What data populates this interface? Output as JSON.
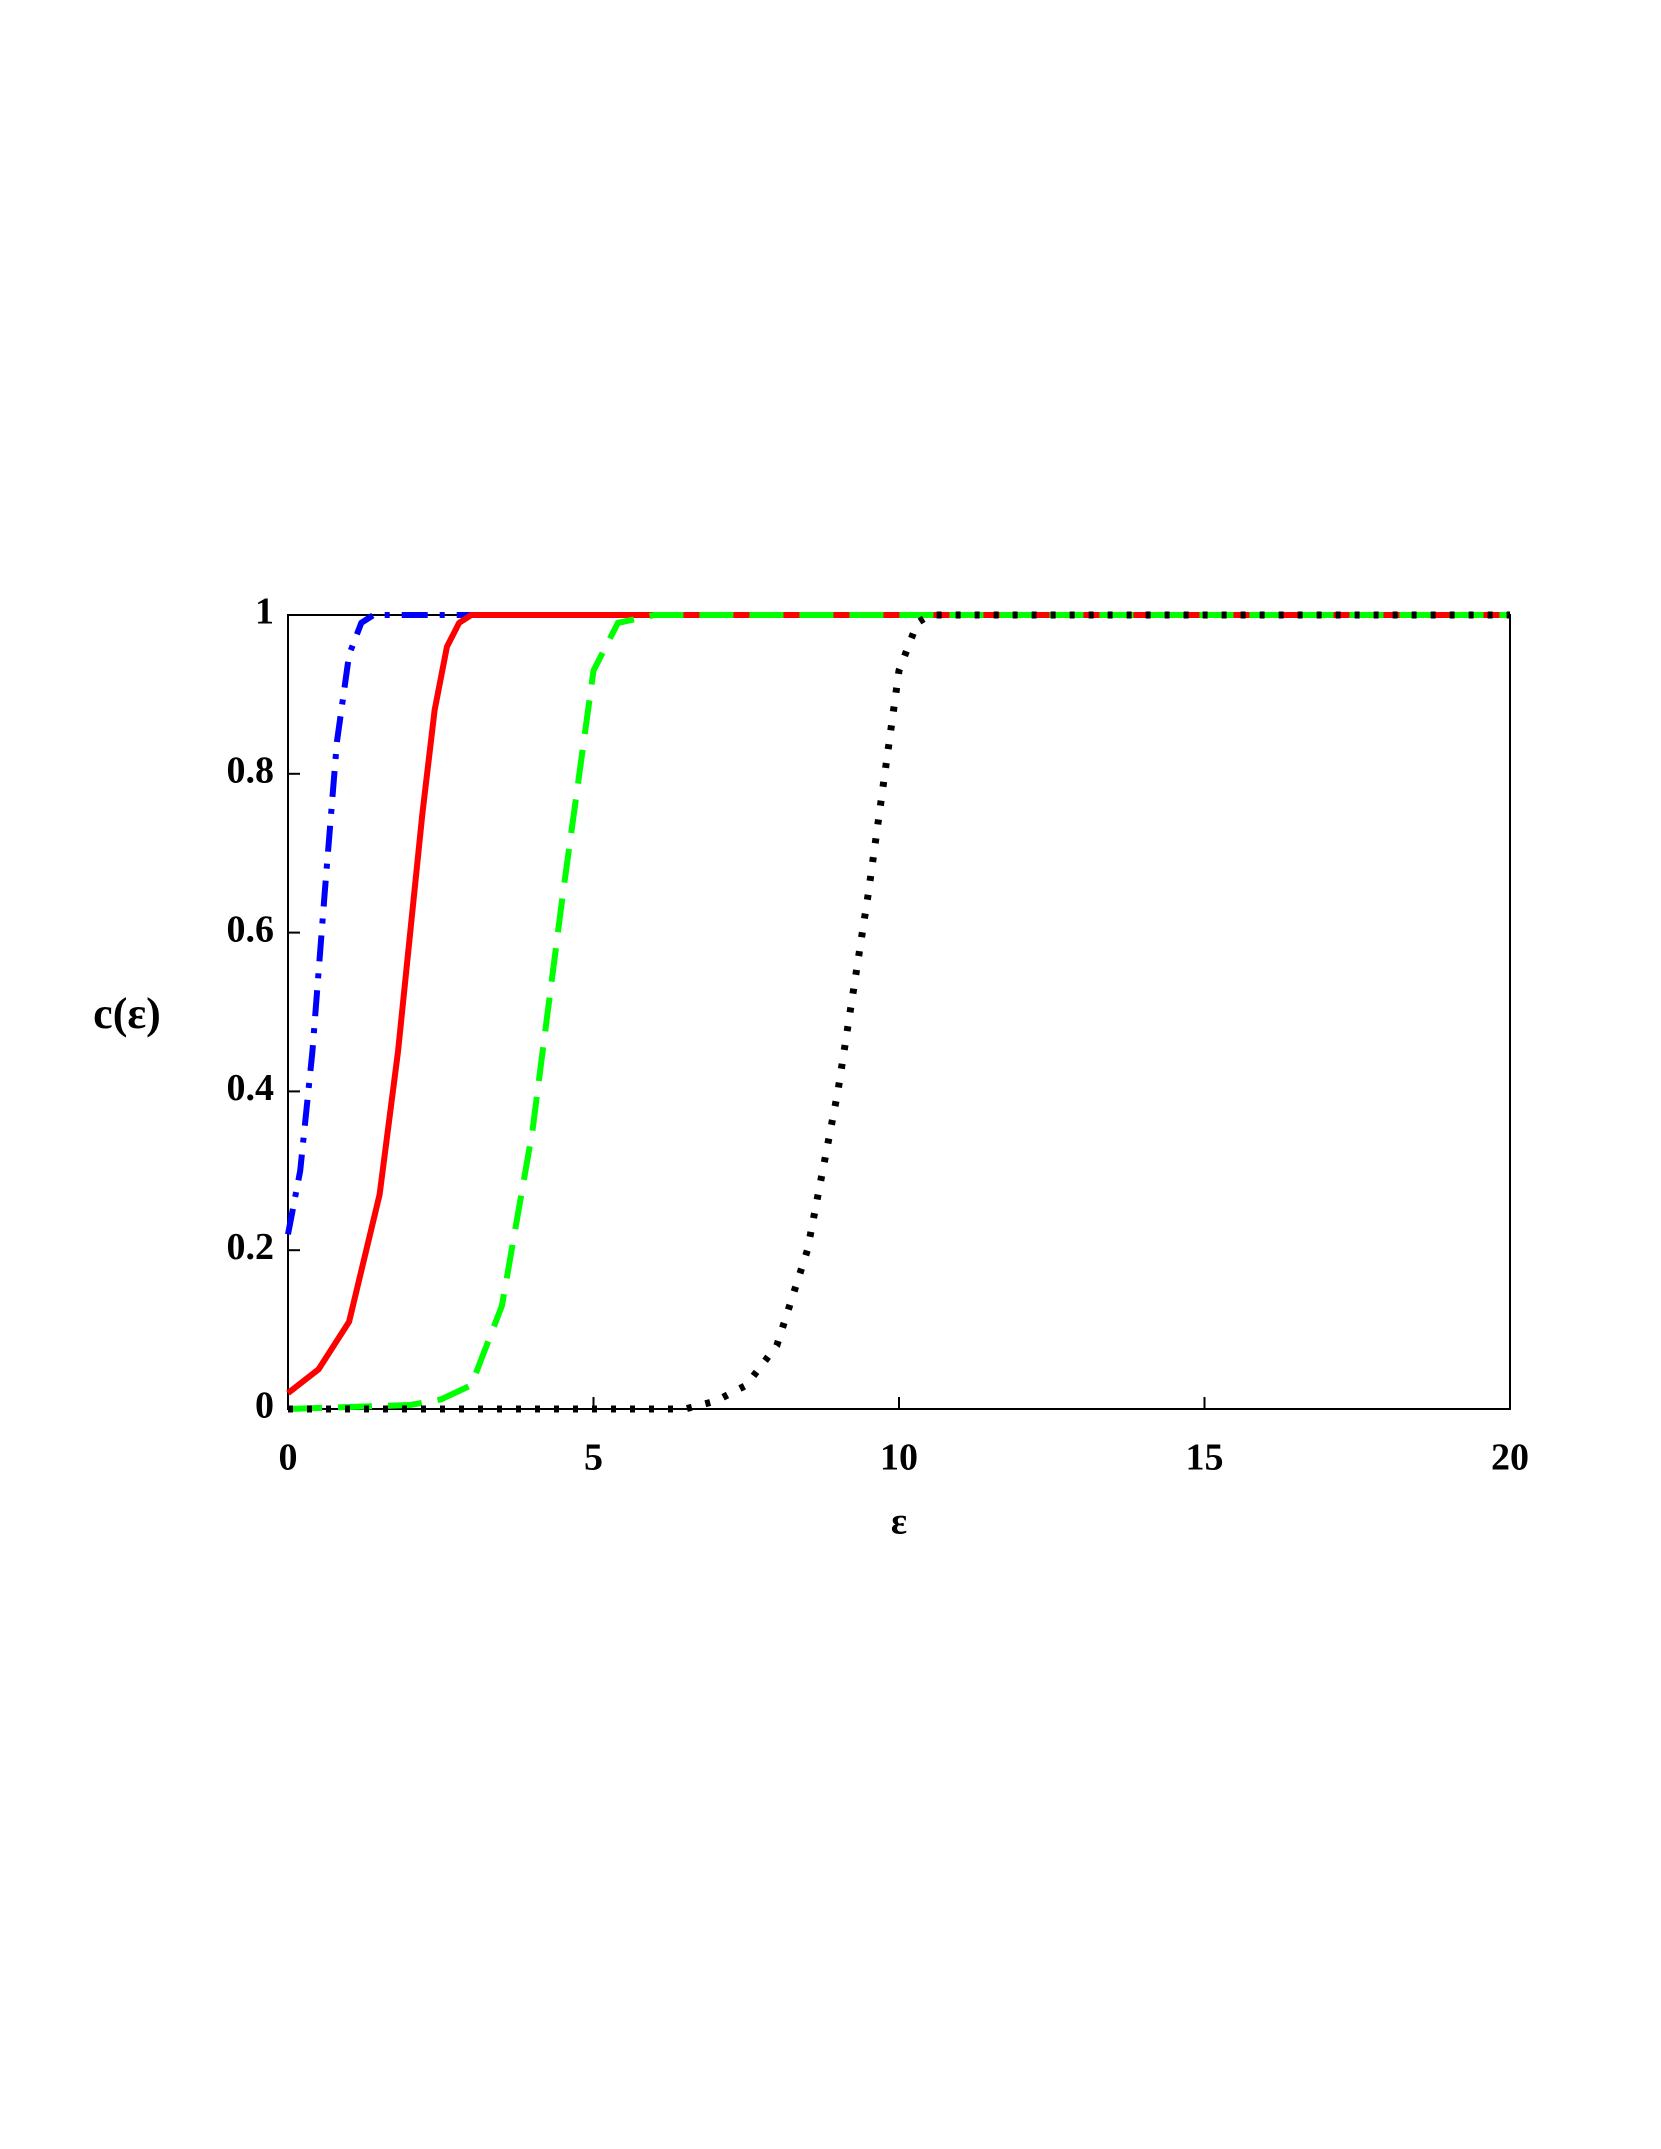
{
  "chart_data": {
    "type": "line",
    "xlabel": "ε",
    "ylabel": "c(ε)",
    "xlim": [
      0,
      20
    ],
    "xticks": [
      0,
      5,
      10,
      15,
      20
    ],
    "ylim": [
      0,
      1
    ],
    "yticks": [
      0,
      0.2,
      0.4,
      0.6,
      0.8,
      1
    ],
    "series": [
      {
        "color": "#0000ff",
        "dash": "dashdot",
        "x": [
          0,
          0.2,
          0.4,
          0.6,
          0.8,
          1.0,
          1.2,
          1.4,
          1.6,
          20
        ],
        "values": [
          0.22,
          0.3,
          0.45,
          0.65,
          0.84,
          0.95,
          0.99,
          1,
          1,
          1
        ]
      },
      {
        "color": "#ff0000",
        "dash": "solid",
        "x": [
          0,
          0.5,
          1,
          1.5,
          1.8,
          2,
          2.2,
          2.4,
          2.6,
          2.8,
          3,
          20
        ],
        "values": [
          0.02,
          0.05,
          0.11,
          0.27,
          0.45,
          0.6,
          0.75,
          0.88,
          0.96,
          0.99,
          1,
          1
        ]
      },
      {
        "color": "#00ff00",
        "dash": "dash",
        "x": [
          0,
          2,
          2.5,
          3,
          3.5,
          4,
          4.5,
          5,
          5.4,
          6,
          20
        ],
        "values": [
          0,
          0.005,
          0.012,
          0.03,
          0.13,
          0.35,
          0.65,
          0.93,
          0.99,
          1,
          1
        ]
      },
      {
        "color": "#000000",
        "dash": "dot",
        "x": [
          0,
          6.5,
          7,
          7.5,
          8,
          8.5,
          9,
          9.5,
          10,
          10.3,
          10.5,
          20
        ],
        "values": [
          0,
          0,
          0.01,
          0.03,
          0.08,
          0.2,
          0.4,
          0.65,
          0.93,
          0.99,
          1,
          1
        ]
      }
    ]
  }
}
